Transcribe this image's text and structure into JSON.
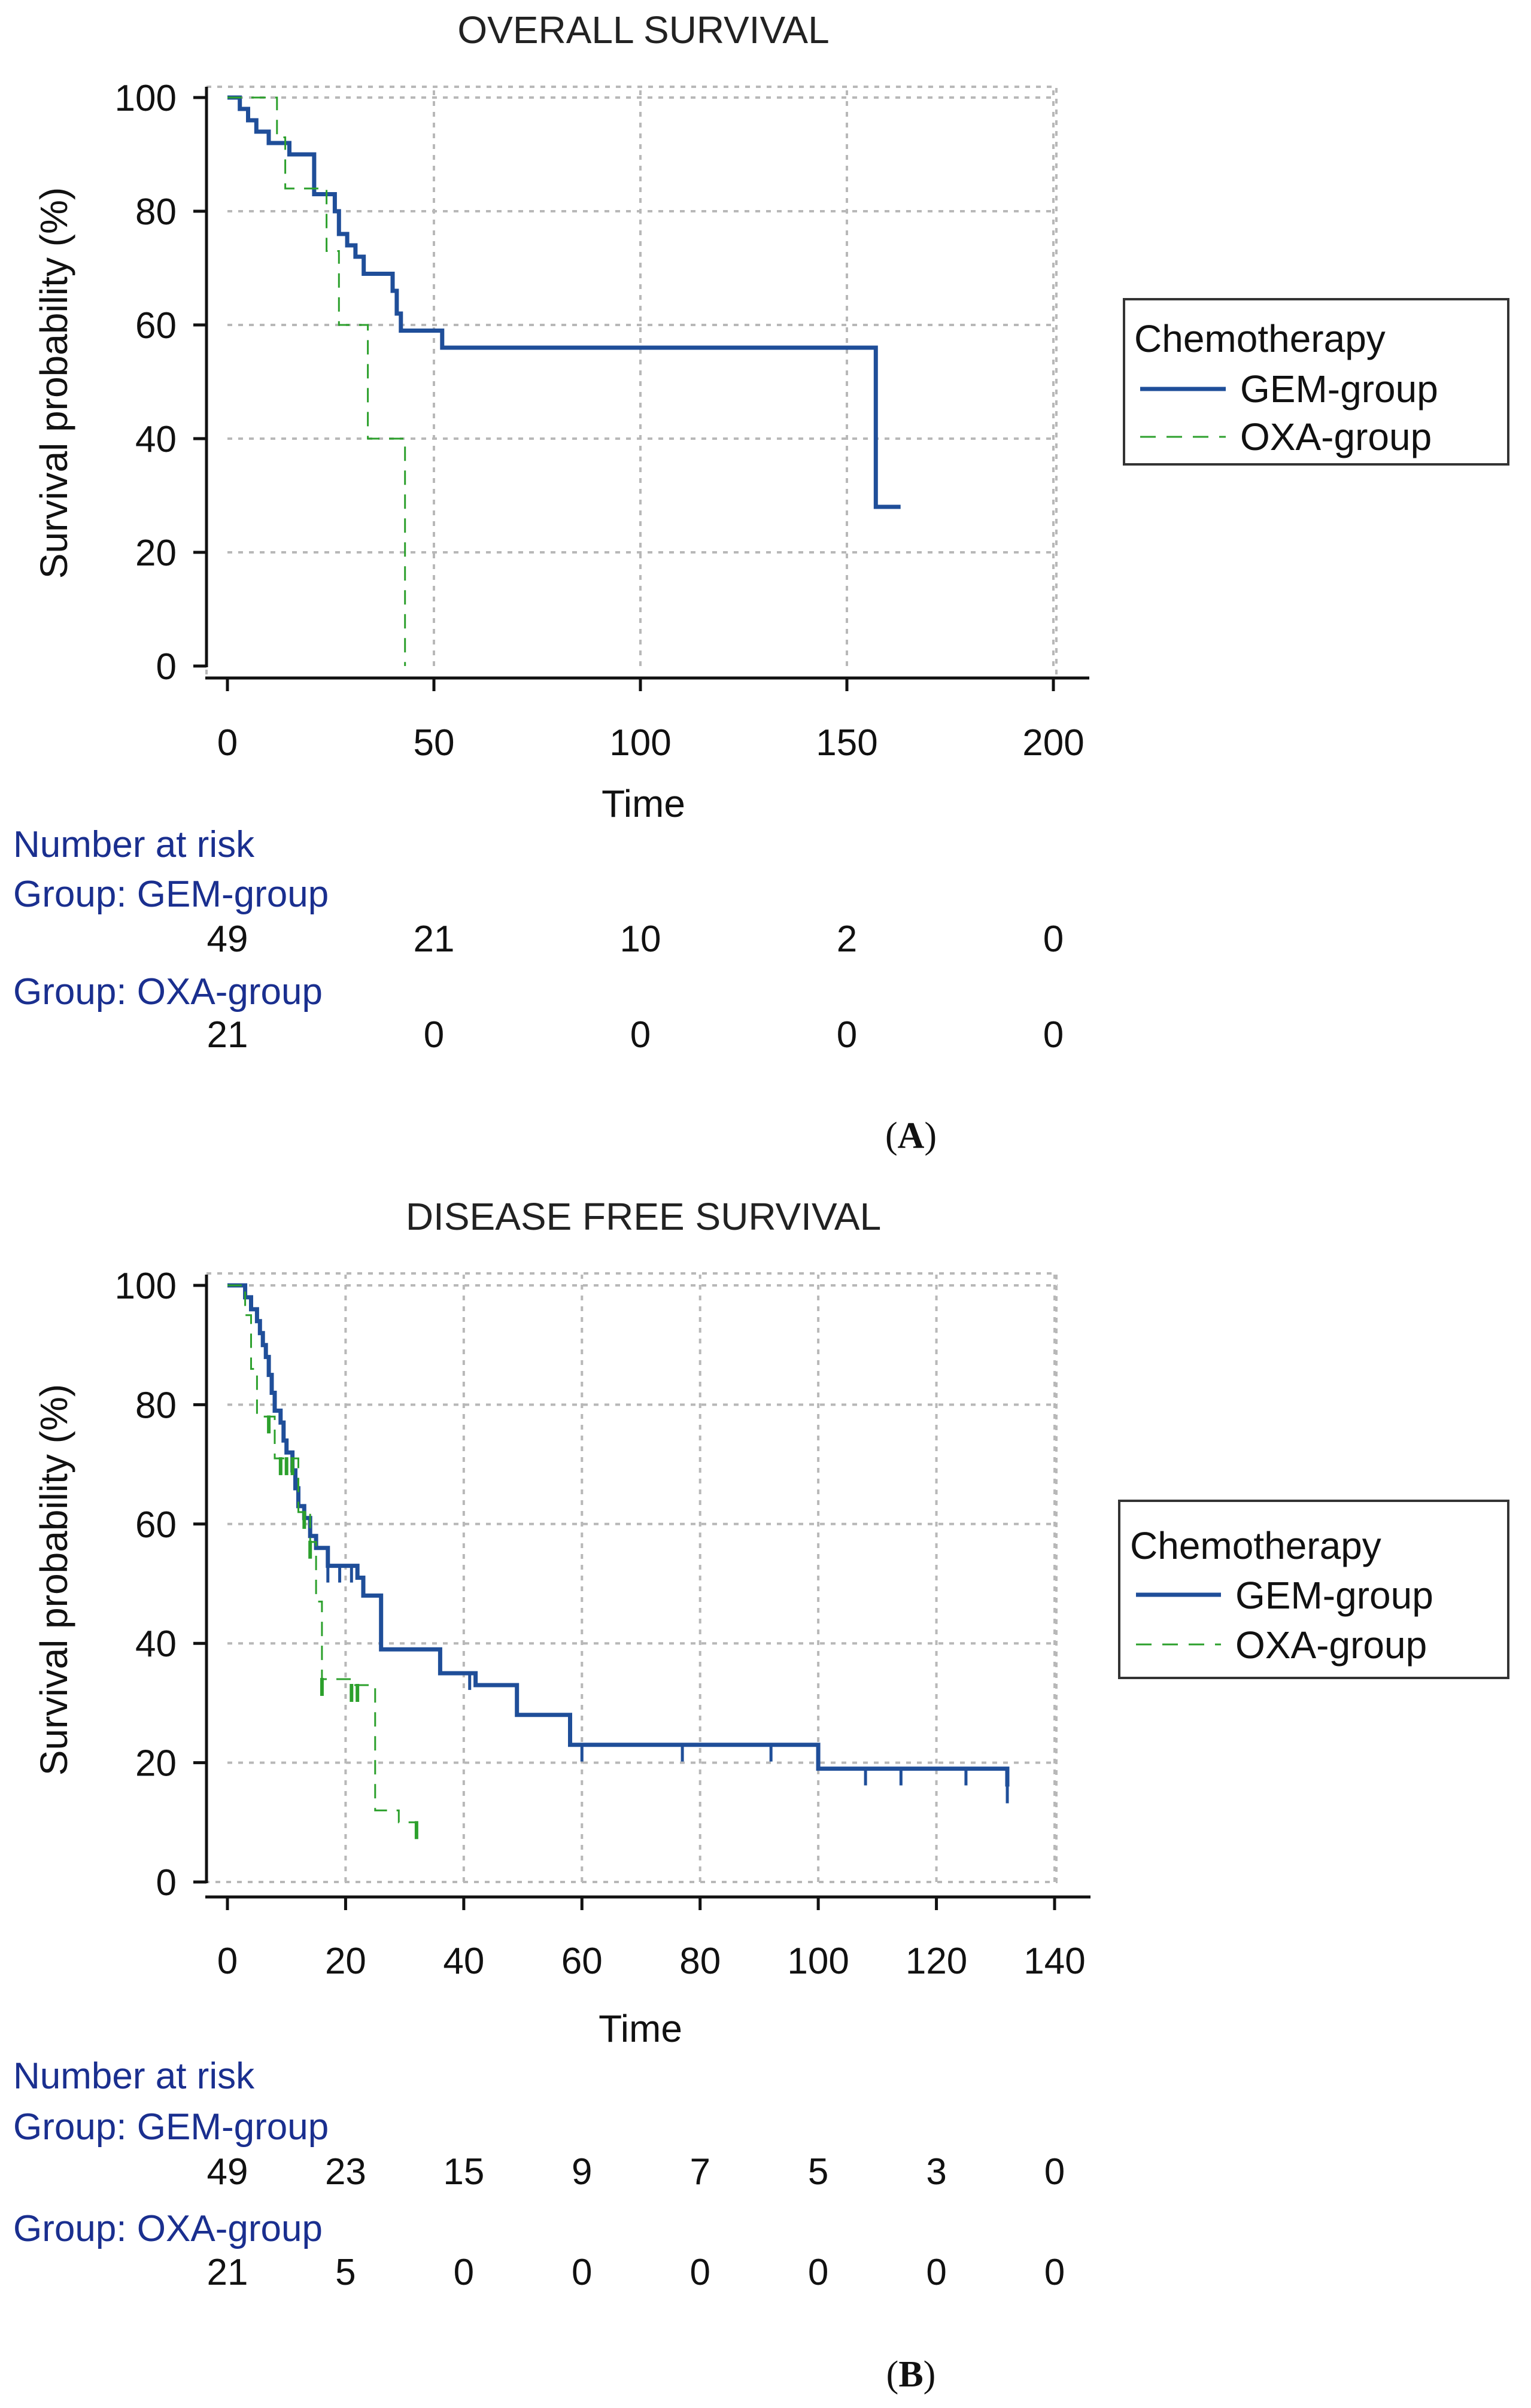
{
  "chart_data": [
    {
      "type": "line",
      "subtype": "kaplan-meier",
      "title": "OVERALL SURVIVAL",
      "panel_label": "A",
      "xlabel": "Time",
      "ylabel": "Survival probability (%)",
      "xlim": [
        0,
        200
      ],
      "ylim": [
        0,
        100
      ],
      "xticks": [
        "0",
        "50",
        "100",
        "150",
        "200"
      ],
      "yticks": [
        "0",
        "20",
        "40",
        "60",
        "80",
        "100"
      ],
      "grid": true,
      "legend": {
        "title": "Chemotherapy",
        "position": "right"
      },
      "series": [
        {
          "name": "GEM-group",
          "color": "#1f4e99",
          "style": "solid",
          "points": [
            [
              0,
              100
            ],
            [
              3,
              100
            ],
            [
              3,
              98
            ],
            [
              5,
              98
            ],
            [
              5,
              96
            ],
            [
              7,
              96
            ],
            [
              7,
              94
            ],
            [
              10,
              94
            ],
            [
              10,
              92
            ],
            [
              15,
              92
            ],
            [
              15,
              90
            ],
            [
              21,
              90
            ],
            [
              21,
              83
            ],
            [
              26,
              83
            ],
            [
              26,
              80
            ],
            [
              27,
              80
            ],
            [
              27,
              76
            ],
            [
              29,
              76
            ],
            [
              29,
              74
            ],
            [
              31,
              74
            ],
            [
              31,
              72
            ],
            [
              33,
              72
            ],
            [
              33,
              69
            ],
            [
              40,
              69
            ],
            [
              40,
              66
            ],
            [
              41,
              66
            ],
            [
              41,
              62
            ],
            [
              42,
              62
            ],
            [
              42,
              59
            ],
            [
              52,
              59
            ],
            [
              52,
              56
            ],
            [
              157,
              56
            ],
            [
              157,
              28
            ],
            [
              163,
              28
            ]
          ]
        },
        {
          "name": "OXA-group",
          "color": "#2ca02c",
          "style": "dashed",
          "points": [
            [
              0,
              100
            ],
            [
              12,
              100
            ],
            [
              12,
              93
            ],
            [
              14,
              93
            ],
            [
              14,
              84
            ],
            [
              24,
              84
            ],
            [
              24,
              73
            ],
            [
              27,
              73
            ],
            [
              27,
              60
            ],
            [
              34,
              60
            ],
            [
              34,
              40
            ],
            [
              43,
              40
            ],
            [
              43,
              0
            ]
          ]
        }
      ],
      "risk_table": {
        "title": "Number at risk",
        "times": [
          0,
          50,
          100,
          150,
          200
        ],
        "rows": [
          {
            "label": "Group: GEM-group",
            "values": [
              "49",
              "21",
              "10",
              "2",
              "0"
            ]
          },
          {
            "label": "Group: OXA-group",
            "values": [
              "21",
              "0",
              "0",
              "0",
              "0"
            ]
          }
        ]
      }
    },
    {
      "type": "line",
      "subtype": "kaplan-meier",
      "title": "DISEASE FREE SURVIVAL",
      "panel_label": "B",
      "xlabel": "Time",
      "ylabel": "Survival probability (%)",
      "xlim": [
        0,
        140
      ],
      "ylim": [
        0,
        100
      ],
      "xticks": [
        "0",
        "20",
        "40",
        "60",
        "80",
        "100",
        "120",
        "140"
      ],
      "yticks": [
        "0",
        "20",
        "40",
        "60",
        "80",
        "100"
      ],
      "grid": true,
      "legend": {
        "title": "Chemotherapy",
        "position": "right"
      },
      "series": [
        {
          "name": "GEM-group",
          "color": "#1f4e99",
          "style": "solid",
          "points": [
            [
              0,
              100
            ],
            [
              3,
              100
            ],
            [
              3,
              98
            ],
            [
              4,
              98
            ],
            [
              4,
              96
            ],
            [
              5,
              96
            ],
            [
              5,
              94
            ],
            [
              5.5,
              94
            ],
            [
              5.5,
              92
            ],
            [
              6,
              92
            ],
            [
              6,
              90
            ],
            [
              6.5,
              90
            ],
            [
              6.5,
              88
            ],
            [
              7,
              88
            ],
            [
              7,
              85
            ],
            [
              7.5,
              85
            ],
            [
              7.5,
              82
            ],
            [
              8,
              82
            ],
            [
              8,
              79
            ],
            [
              9,
              79
            ],
            [
              9,
              77
            ],
            [
              9.5,
              77
            ],
            [
              9.5,
              74
            ],
            [
              10,
              74
            ],
            [
              10,
              72
            ],
            [
              11,
              72
            ],
            [
              11,
              69
            ],
            [
              11.5,
              69
            ],
            [
              11.5,
              66
            ],
            [
              12,
              66
            ],
            [
              12,
              63
            ],
            [
              13,
              63
            ],
            [
              13,
              61
            ],
            [
              14,
              61
            ],
            [
              14,
              58
            ],
            [
              15,
              58
            ],
            [
              15,
              56
            ],
            [
              17,
              56
            ],
            [
              17,
              53
            ],
            [
              22,
              53
            ],
            [
              22,
              51
            ],
            [
              23,
              51
            ],
            [
              23,
              48
            ],
            [
              26,
              48
            ],
            [
              26,
              39
            ],
            [
              36,
              39
            ],
            [
              36,
              35
            ],
            [
              42,
              35
            ],
            [
              42,
              33
            ],
            [
              49,
              33
            ],
            [
              49,
              28
            ],
            [
              58,
              28
            ],
            [
              58,
              23
            ],
            [
              100,
              23
            ],
            [
              100,
              19
            ],
            [
              132,
              19
            ],
            [
              132,
              16
            ]
          ],
          "censor_times": [
            17,
            19,
            21,
            41,
            60,
            77,
            92,
            108,
            114,
            125,
            132
          ]
        },
        {
          "name": "OXA-group",
          "color": "#2ca02c",
          "style": "dashed",
          "points": [
            [
              0,
              100
            ],
            [
              3,
              100
            ],
            [
              3,
              95
            ],
            [
              4,
              95
            ],
            [
              4,
              86
            ],
            [
              5,
              86
            ],
            [
              5,
              78
            ],
            [
              8,
              78
            ],
            [
              8,
              71
            ],
            [
              12,
              71
            ],
            [
              12,
              62
            ],
            [
              14,
              62
            ],
            [
              14,
              57
            ],
            [
              15,
              57
            ],
            [
              15,
              47
            ],
            [
              16,
              47
            ],
            [
              16,
              34
            ],
            [
              21,
              34
            ],
            [
              21,
              33
            ],
            [
              25,
              33
            ],
            [
              25,
              12
            ],
            [
              29,
              12
            ],
            [
              29,
              10
            ],
            [
              32,
              10
            ]
          ],
          "censor_times": [
            7,
            9,
            10,
            11,
            13,
            14,
            16,
            21,
            22,
            32
          ]
        }
      ],
      "risk_table": {
        "title": "Number at risk",
        "times": [
          0,
          20,
          40,
          60,
          80,
          100,
          120,
          140
        ],
        "rows": [
          {
            "label": "Group: GEM-group",
            "values": [
              "49",
              "23",
              "15",
              "9",
              "7",
              "5",
              "3",
              "0"
            ]
          },
          {
            "label": "Group: OXA-group",
            "values": [
              "21",
              "5",
              "0",
              "0",
              "0",
              "0",
              "0",
              "0"
            ]
          }
        ]
      }
    }
  ]
}
